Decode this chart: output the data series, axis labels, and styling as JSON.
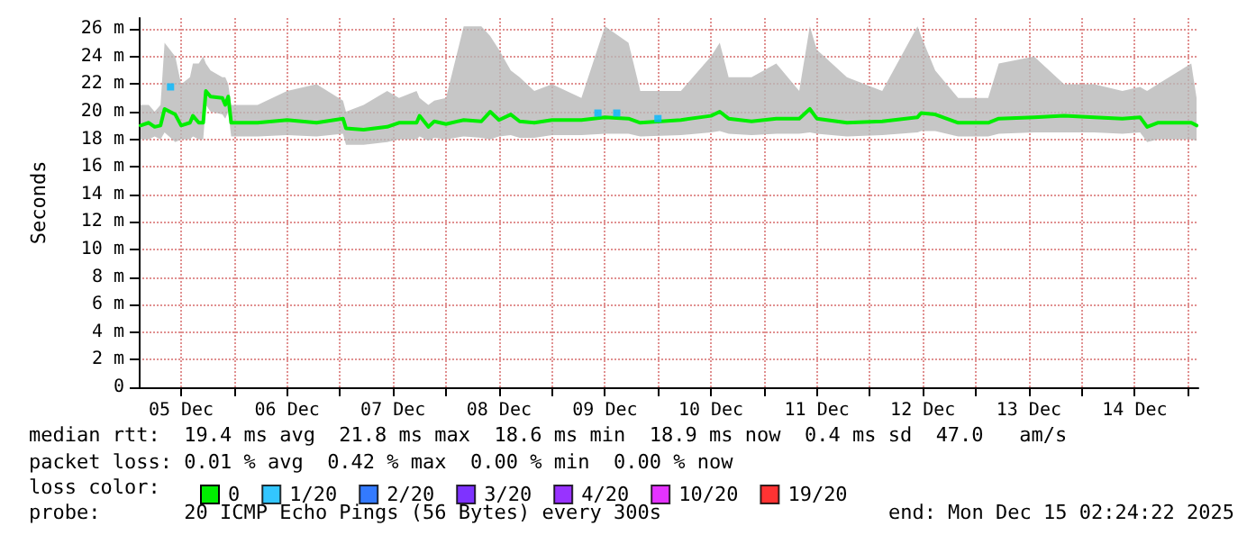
{
  "chart_data": {
    "type": "line",
    "ylabel": "Seconds",
    "legend_title": "loss color:",
    "legend": "bottom",
    "grid": true,
    "line_style": "solid",
    "xlim": [
      "2025-12-05T02:24",
      "2025-12-15T02:24"
    ],
    "xticks": [
      {
        "value": "2025-12-05T12:00",
        "label": "05 Dec"
      },
      {
        "value": "2025-12-06T00:00",
        "label": null
      },
      {
        "value": "2025-12-06T12:00",
        "label": "06 Dec"
      },
      {
        "value": "2025-12-07T00:00",
        "label": null
      },
      {
        "value": "2025-12-07T12:00",
        "label": "07 Dec"
      },
      {
        "value": "2025-12-08T00:00",
        "label": null
      },
      {
        "value": "2025-12-08T12:00",
        "label": "08 Dec"
      },
      {
        "value": "2025-12-09T00:00",
        "label": null
      },
      {
        "value": "2025-12-09T12:00",
        "label": "09 Dec"
      },
      {
        "value": "2025-12-10T00:00",
        "label": null
      },
      {
        "value": "2025-12-10T12:00",
        "label": "10 Dec"
      },
      {
        "value": "2025-12-11T00:00",
        "label": null
      },
      {
        "value": "2025-12-11T12:00",
        "label": "11 Dec"
      },
      {
        "value": "2025-12-12T00:00",
        "label": null
      },
      {
        "value": "2025-12-12T12:00",
        "label": "12 Dec"
      },
      {
        "value": "2025-12-13T00:00",
        "label": null
      },
      {
        "value": "2025-12-13T12:00",
        "label": "13 Dec"
      },
      {
        "value": "2025-12-14T00:00",
        "label": null
      },
      {
        "value": "2025-12-14T12:00",
        "label": "14 Dec"
      },
      {
        "value": "2025-12-15T00:00",
        "label": null
      }
    ],
    "ylim": [
      0,
      26.8
    ],
    "yticks": [
      0,
      {
        "value": 2,
        "label": "2 m"
      },
      {
        "value": 4,
        "label": "4 m"
      },
      {
        "value": 6,
        "label": "6 m"
      },
      {
        "value": 8,
        "label": "8 m"
      },
      {
        "value": 10,
        "label": "10 m"
      },
      {
        "value": 12,
        "label": "12 m"
      },
      {
        "value": 14,
        "label": "14 m"
      },
      {
        "value": 16,
        "label": "16 m"
      },
      {
        "value": 18,
        "label": "18 m"
      },
      {
        "value": 20,
        "label": "20 m"
      },
      {
        "value": 22,
        "label": "22 m"
      },
      {
        "value": 24,
        "label": "24 m"
      },
      {
        "value": 26,
        "label": "26 m"
      }
    ],
    "series": [
      {
        "name": "0",
        "color": "#00ee00",
        "x": [
          "2025-12-05T02:48",
          "2025-12-05T04:40",
          "2025-12-05T06:00",
          "2025-12-05T07:20",
          "2025-12-05T08:15",
          "2025-12-05T10:40",
          "2025-12-05T12:00",
          "2025-12-05T14:00",
          "2025-12-05T14:40",
          "2025-12-05T16:00",
          "2025-12-05T17:00",
          "2025-12-05T17:36",
          "2025-12-05T18:40",
          "2025-12-05T21:20",
          "2025-12-05T22:00",
          "2025-12-05T22:40",
          "2025-12-05T23:20",
          "2025-12-06T05:20",
          "2025-12-06T12:00",
          "2025-12-06T18:40",
          "2025-12-07T00:40",
          "2025-12-07T01:20",
          "2025-12-07T05:20",
          "2025-12-07T10:40",
          "2025-12-07T13:20",
          "2025-12-07T17:20",
          "2025-12-07T18:00",
          "2025-12-07T20:00",
          "2025-12-07T21:20",
          "2025-12-08T00:00",
          "2025-12-08T04:00",
          "2025-12-08T08:00",
          "2025-12-08T10:00",
          "2025-12-08T12:00",
          "2025-12-08T14:40",
          "2025-12-08T16:40",
          "2025-12-08T20:00",
          "2025-12-09T00:00",
          "2025-12-09T06:40",
          "2025-12-09T12:00",
          "2025-12-09T17:20",
          "2025-12-09T20:00",
          "2025-12-10T05:12",
          "2025-12-10T12:00",
          "2025-12-10T14:00",
          "2025-12-10T16:00",
          "2025-12-10T21:12",
          "2025-12-11T02:48",
          "2025-12-11T08:00",
          "2025-12-11T10:24",
          "2025-12-11T12:00",
          "2025-12-11T18:48",
          "2025-12-12T02:48",
          "2025-12-12T10:48",
          "2025-12-12T11:36",
          "2025-12-12T14:48",
          "2025-12-12T20:00",
          "2025-12-13T02:48",
          "2025-12-13T05:12",
          "2025-12-13T13:12",
          "2025-12-13T20:00",
          "2025-12-14T02:48",
          "2025-12-14T09:12",
          "2025-12-14T13:12",
          "2025-12-14T14:48",
          "2025-12-14T17:12",
          "2025-12-15T00:48",
          "2025-12-15T02:00"
        ],
        "values": [
          19.0,
          19.2,
          18.9,
          19.0,
          20.2,
          19.8,
          19.0,
          19.2,
          19.7,
          19.2,
          19.2,
          21.5,
          21.1,
          21.0,
          20.5,
          21.1,
          19.2,
          19.2,
          19.4,
          19.2,
          19.5,
          18.8,
          18.7,
          18.9,
          19.2,
          19.2,
          19.7,
          18.9,
          19.3,
          19.1,
          19.4,
          19.3,
          20.0,
          19.4,
          19.8,
          19.3,
          19.2,
          19.4,
          19.4,
          19.6,
          19.5,
          19.2,
          19.4,
          19.7,
          20.0,
          19.5,
          19.3,
          19.5,
          19.5,
          20.2,
          19.5,
          19.2,
          19.3,
          19.6,
          19.9,
          19.8,
          19.2,
          19.2,
          19.5,
          19.6,
          19.7,
          19.6,
          19.5,
          19.6,
          18.9,
          19.2,
          19.2,
          19.0
        ],
        "lower": [
          18.0,
          18.0,
          18.2,
          18.0,
          18.5,
          17.8,
          18.0,
          18.0,
          18.2,
          18.0,
          18.0,
          20.5,
          20.0,
          19.8,
          19.5,
          20.0,
          18.2,
          18.2,
          18.3,
          18.2,
          18.4,
          17.6,
          17.6,
          17.8,
          18.0,
          18.0,
          18.2,
          17.9,
          18.1,
          18.0,
          18.2,
          18.1,
          18.0,
          18.2,
          18.3,
          18.1,
          18.1,
          18.3,
          18.3,
          18.4,
          18.4,
          18.2,
          18.3,
          18.5,
          18.6,
          18.4,
          18.3,
          18.4,
          18.4,
          18.5,
          18.4,
          18.2,
          18.3,
          18.5,
          18.6,
          18.6,
          18.2,
          18.2,
          18.4,
          18.5,
          18.5,
          18.5,
          18.4,
          18.5,
          17.8,
          18.0,
          18.0,
          17.9
        ],
        "upper": [
          20.5,
          20.5,
          20.0,
          20.5,
          25.0,
          24.0,
          22.0,
          22.5,
          23.5,
          23.5,
          24.0,
          23.5,
          23.0,
          22.5,
          22.5,
          22.0,
          20.5,
          20.5,
          21.5,
          22.0,
          20.8,
          20.0,
          20.5,
          21.5,
          21.0,
          21.5,
          21.0,
          20.5,
          20.8,
          21.0,
          26.2,
          26.2,
          25.5,
          24.5,
          23.0,
          22.5,
          21.5,
          22.0,
          21.0,
          26.2,
          25.0,
          21.5,
          21.5,
          24.0,
          25.0,
          22.5,
          22.5,
          23.5,
          21.5,
          26.2,
          24.5,
          22.5,
          21.5,
          26.2,
          25.5,
          23.0,
          21.0,
          21.0,
          23.5,
          24.0,
          22.0,
          22.0,
          21.5,
          21.8,
          21.5,
          22.0,
          23.5,
          21.0
        ]
      },
      {
        "name": "1/20",
        "type": "scatter",
        "color": "#00b8ff",
        "x": [
          "2025-12-05T09:36",
          "2025-12-09T10:24",
          "2025-12-09T14:40",
          "2025-12-10T00:00"
        ],
        "values": [
          21.8,
          19.9,
          19.9,
          19.5
        ]
      },
      {
        "name": "2/20",
        "type": "scatter",
        "color": "#0059ff"
      },
      {
        "name": "3/20",
        "type": "scatter",
        "color": "#5e00ff"
      },
      {
        "name": "4/20",
        "type": "scatter",
        "color": "#7e00ff"
      },
      {
        "name": "10/20",
        "type": "scatter",
        "color": "#dd00ff"
      },
      {
        "name": "19/20",
        "type": "scatter",
        "color": "#ff0000"
      }
    ],
    "annotations": [
      "median rtt:  19.4 ms avg  21.8 ms max  18.6 ms min  18.9 ms now  0.4 ms sd  47.0   am/s",
      "packet loss: 0.01 % avg  0.42 % max  0.00 % min  0.00 % now",
      "probe:       20 ICMP Echo Pings (56 Bytes) every 300s",
      "end: Mon Dec 15 02:24:22 2025"
    ]
  }
}
